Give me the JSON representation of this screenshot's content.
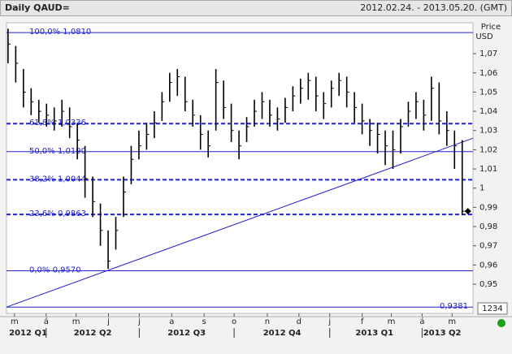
{
  "chart_data": {
    "type": "ohlc",
    "title": "Daily QAUD=",
    "subtitle": "2012.02.24. - 2013.05.20. (GMT)",
    "y_label": [
      "Price",
      "USD"
    ],
    "button_label": "1234",
    "color": "#000000",
    "line_color": "#2222cc",
    "ylim": [
      0.9348,
      1.0861
    ],
    "xlim": [
      -0.2,
      60.4
    ],
    "yticks": [
      {
        "value": 1.07,
        "label": "1,07"
      },
      {
        "value": 1.06,
        "label": "1,06"
      },
      {
        "value": 1.05,
        "label": "1,05"
      },
      {
        "value": 1.04,
        "label": "1,04"
      },
      {
        "value": 1.03,
        "label": "1,03"
      },
      {
        "value": 1.02,
        "label": "1,02"
      },
      {
        "value": 1.01,
        "label": "1,01"
      },
      1,
      {
        "value": 0.99,
        "label": "0,99"
      },
      {
        "value": 0.98,
        "label": "0,98"
      },
      {
        "value": 0.97,
        "label": "0,97"
      },
      {
        "value": 0.96,
        "label": "0,96"
      },
      {
        "value": 0.95,
        "label": "0,95"
      }
    ],
    "xticks": [
      {
        "value": 0.84,
        "label": "m"
      },
      {
        "value": 4.95,
        "label": "á"
      },
      {
        "value": 8.84,
        "label": "m"
      },
      {
        "value": 13.05,
        "label": "j"
      },
      {
        "value": 17.05,
        "label": "j"
      },
      {
        "value": 21.26,
        "label": "a"
      },
      {
        "value": 25.47,
        "label": "s"
      },
      {
        "value": 29.37,
        "label": "o"
      },
      {
        "value": 33.68,
        "label": "n"
      },
      {
        "value": 37.79,
        "label": "d"
      },
      {
        "value": 41.79,
        "label": "j"
      },
      {
        "value": 46,
        "label": "f"
      },
      {
        "value": 49.79,
        "label": "m"
      },
      {
        "value": 53.79,
        "label": "á"
      },
      {
        "value": 57.68,
        "label": "m"
      }
    ],
    "quarters": [
      {
        "value": 2.6,
        "label": "2012 Q1"
      },
      {
        "value": 11,
        "label": "2012 Q2"
      },
      {
        "value": 23.2,
        "label": "2012 Q3"
      },
      {
        "value": 35.6,
        "label": "2012 Q4"
      },
      {
        "value": 47.6,
        "label": "2013 Q1"
      },
      {
        "value": 56.4,
        "label": "2013 Q2"
      }
    ],
    "quarter_breaks": [
      4.95,
      17.05,
      29.37,
      41.79,
      53.79
    ],
    "levels": [
      {
        "value": 1.081,
        "label": "100,0% 1,0810",
        "dashed": false
      },
      {
        "value": 1.0336,
        "label": "61,8% 1,0336",
        "dashed": true
      },
      {
        "value": 1.019,
        "label": "50,0% 1,0190",
        "dashed": false
      },
      {
        "value": 1.0044,
        "label": "38,2% 1,0044",
        "dashed": true
      },
      {
        "value": 0.9863,
        "label": "23,6% 0,9863",
        "dashed": true
      },
      {
        "value": 0.957,
        "label": "0,0% 0,9570",
        "dashed": false
      },
      {
        "value": 0.9381,
        "label": "0,9381",
        "dashed": false
      }
    ],
    "trendline": [
      0.9381,
      1.026
    ],
    "categories": [
      null,
      null,
      null,
      null,
      null,
      null,
      null,
      null,
      null,
      null,
      null,
      null,
      null,
      null,
      null,
      null,
      null,
      null,
      null,
      null,
      null,
      null,
      null,
      null,
      null,
      null,
      null,
      null,
      null,
      null,
      null,
      null,
      null,
      null,
      null,
      null,
      null,
      null,
      null,
      null,
      null,
      null,
      null,
      null,
      null,
      null,
      null,
      null,
      null,
      null,
      null,
      null,
      null,
      null,
      null,
      null,
      null,
      null,
      null,
      null
    ],
    "high": [
      1.083,
      1.074,
      1.062,
      1.052,
      1.046,
      1.044,
      1.042,
      1.046,
      1.042,
      1.034,
      1.022,
      1.006,
      0.992,
      0.978,
      0.985,
      1.006,
      1.022,
      1.03,
      1.034,
      1.04,
      1.05,
      1.06,
      1.062,
      1.058,
      1.046,
      1.038,
      1.03,
      1.062,
      1.056,
      1.044,
      1.03,
      1.037,
      1.046,
      1.05,
      1.046,
      1.042,
      1.047,
      1.053,
      1.057,
      1.06,
      1.058,
      1.05,
      1.056,
      1.06,
      1.058,
      1.05,
      1.044,
      1.036,
      1.034,
      1.03,
      1.03,
      1.036,
      1.045,
      1.05,
      1.046,
      1.058,
      1.055,
      1.04,
      1.03,
      1.025
    ],
    "low": [
      1.065,
      1.055,
      1.042,
      1.038,
      1.034,
      1.032,
      1.03,
      1.032,
      1.026,
      1.015,
      0.995,
      0.985,
      0.97,
      0.958,
      0.968,
      0.985,
      1.002,
      1.015,
      1.02,
      1.026,
      1.035,
      1.045,
      1.048,
      1.04,
      1.032,
      1.02,
      1.016,
      1.03,
      1.036,
      1.024,
      1.015,
      1.024,
      1.032,
      1.036,
      1.032,
      1.03,
      1.034,
      1.04,
      1.044,
      1.046,
      1.04,
      1.036,
      1.042,
      1.048,
      1.042,
      1.034,
      1.028,
      1.022,
      1.018,
      1.012,
      1.01,
      1.018,
      1.032,
      1.036,
      1.03,
      1.035,
      1.028,
      1.022,
      1.01,
      0.986
    ],
    "close": [
      1.075,
      1.065,
      1.05,
      1.045,
      1.04,
      1.038,
      1.035,
      1.04,
      1.032,
      1.025,
      1.005,
      0.993,
      0.978,
      0.962,
      0.978,
      0.998,
      1.015,
      1.022,
      1.028,
      1.034,
      1.045,
      1.055,
      1.058,
      1.045,
      1.038,
      1.028,
      1.022,
      1.055,
      1.042,
      1.03,
      1.022,
      1.032,
      1.04,
      1.045,
      1.038,
      1.036,
      1.042,
      1.048,
      1.052,
      1.056,
      1.048,
      1.044,
      1.052,
      1.056,
      1.05,
      1.042,
      1.035,
      1.03,
      1.028,
      1.022,
      1.02,
      1.032,
      1.04,
      1.045,
      1.038,
      1.052,
      1.035,
      1.03,
      1.022,
      0.988
    ]
  }
}
